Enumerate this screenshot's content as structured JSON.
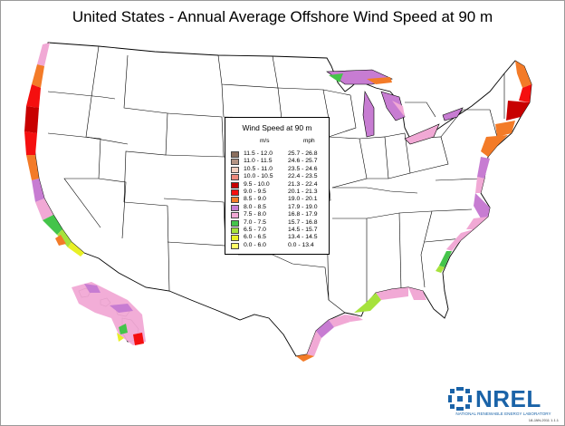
{
  "title": "United States - Annual Average Offshore Wind Speed at 90 m",
  "legend": {
    "title": "Wind Speed at 90 m",
    "unit_ms": "m/s",
    "unit_mph": "mph",
    "rows": [
      {
        "ms": "11.5 - 12.0",
        "mph": "25.7 - 26.8",
        "color": "#8b6f5e"
      },
      {
        "ms": "11.0 - 11.5",
        "mph": "24.6 - 25.7",
        "color": "#b49484"
      },
      {
        "ms": "10.5 - 11.0",
        "mph": "23.5 - 24.6",
        "color": "#f3d0c0"
      },
      {
        "ms": "10.0 - 10.5",
        "mph": "22.4 - 23.5",
        "color": "#ee8a7c"
      },
      {
        "ms": "9.5 - 10.0",
        "mph": "21.3 - 22.4",
        "color": "#c80000"
      },
      {
        "ms": "9.0 - 9.5",
        "mph": "20.1 - 21.3",
        "color": "#f50f0f"
      },
      {
        "ms": "8.5 - 9.0",
        "mph": "19.0 - 20.1",
        "color": "#f37b28"
      },
      {
        "ms": "8.0 - 8.5",
        "mph": "17.9 - 19.0",
        "color": "#c77cd2"
      },
      {
        "ms": "7.5 - 8.0",
        "mph": "16.8 - 17.9",
        "color": "#f1a9d5"
      },
      {
        "ms": "7.0 - 7.5",
        "mph": "15.7 - 16.8",
        "color": "#44c44a"
      },
      {
        "ms": "6.5 - 7.0",
        "mph": "14.5 - 15.7",
        "color": "#a6e23c"
      },
      {
        "ms": "6.0 - 6.5",
        "mph": "13.4 - 14.5",
        "color": "#e8f026"
      },
      {
        "ms": "0.0 - 6.0",
        "mph": "0.0 - 13.4",
        "color": "#ffff66"
      }
    ]
  },
  "logo": {
    "name": "NREL",
    "subtitle": "NATIONAL RENEWABLE ENERGY LABORATORY",
    "color": "#1a63a8"
  },
  "stamp": "18-JAN-2011 1.1.1"
}
